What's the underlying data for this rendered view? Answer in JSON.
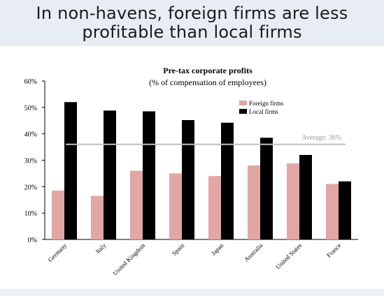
{
  "slide": {
    "title_line1": "In non-havens, foreign firms are less",
    "title_line2": "profitable than local firms"
  },
  "chart_data": {
    "type": "bar",
    "title": "Pre-tax corporate profits",
    "subtitle": "(% of compensation of employees)",
    "categories": [
      "Germany",
      "Italy",
      "United Kingdom",
      "Spain",
      "Japan",
      "Australia",
      "United States",
      "France"
    ],
    "series": [
      {
        "name": "Foreign firms",
        "color": "#e2a6a4",
        "values": [
          18.5,
          16.5,
          26,
          25,
          24,
          28,
          28.8,
          21
        ]
      },
      {
        "name": "Local firms",
        "color": "#000000",
        "values": [
          52,
          48.8,
          48.5,
          45.2,
          44.2,
          38.5,
          32,
          22
        ]
      }
    ],
    "ylim": [
      0,
      60
    ],
    "yticks": [
      0,
      10,
      20,
      30,
      40,
      50,
      60
    ],
    "ytick_labels": [
      "0%",
      "10%",
      "20%",
      "30%",
      "40%",
      "50%",
      "60%"
    ],
    "average": {
      "value": 36,
      "label": "Average: 36%",
      "color": "#bfbfbf"
    },
    "legend_position": "top-right",
    "grid": false
  }
}
